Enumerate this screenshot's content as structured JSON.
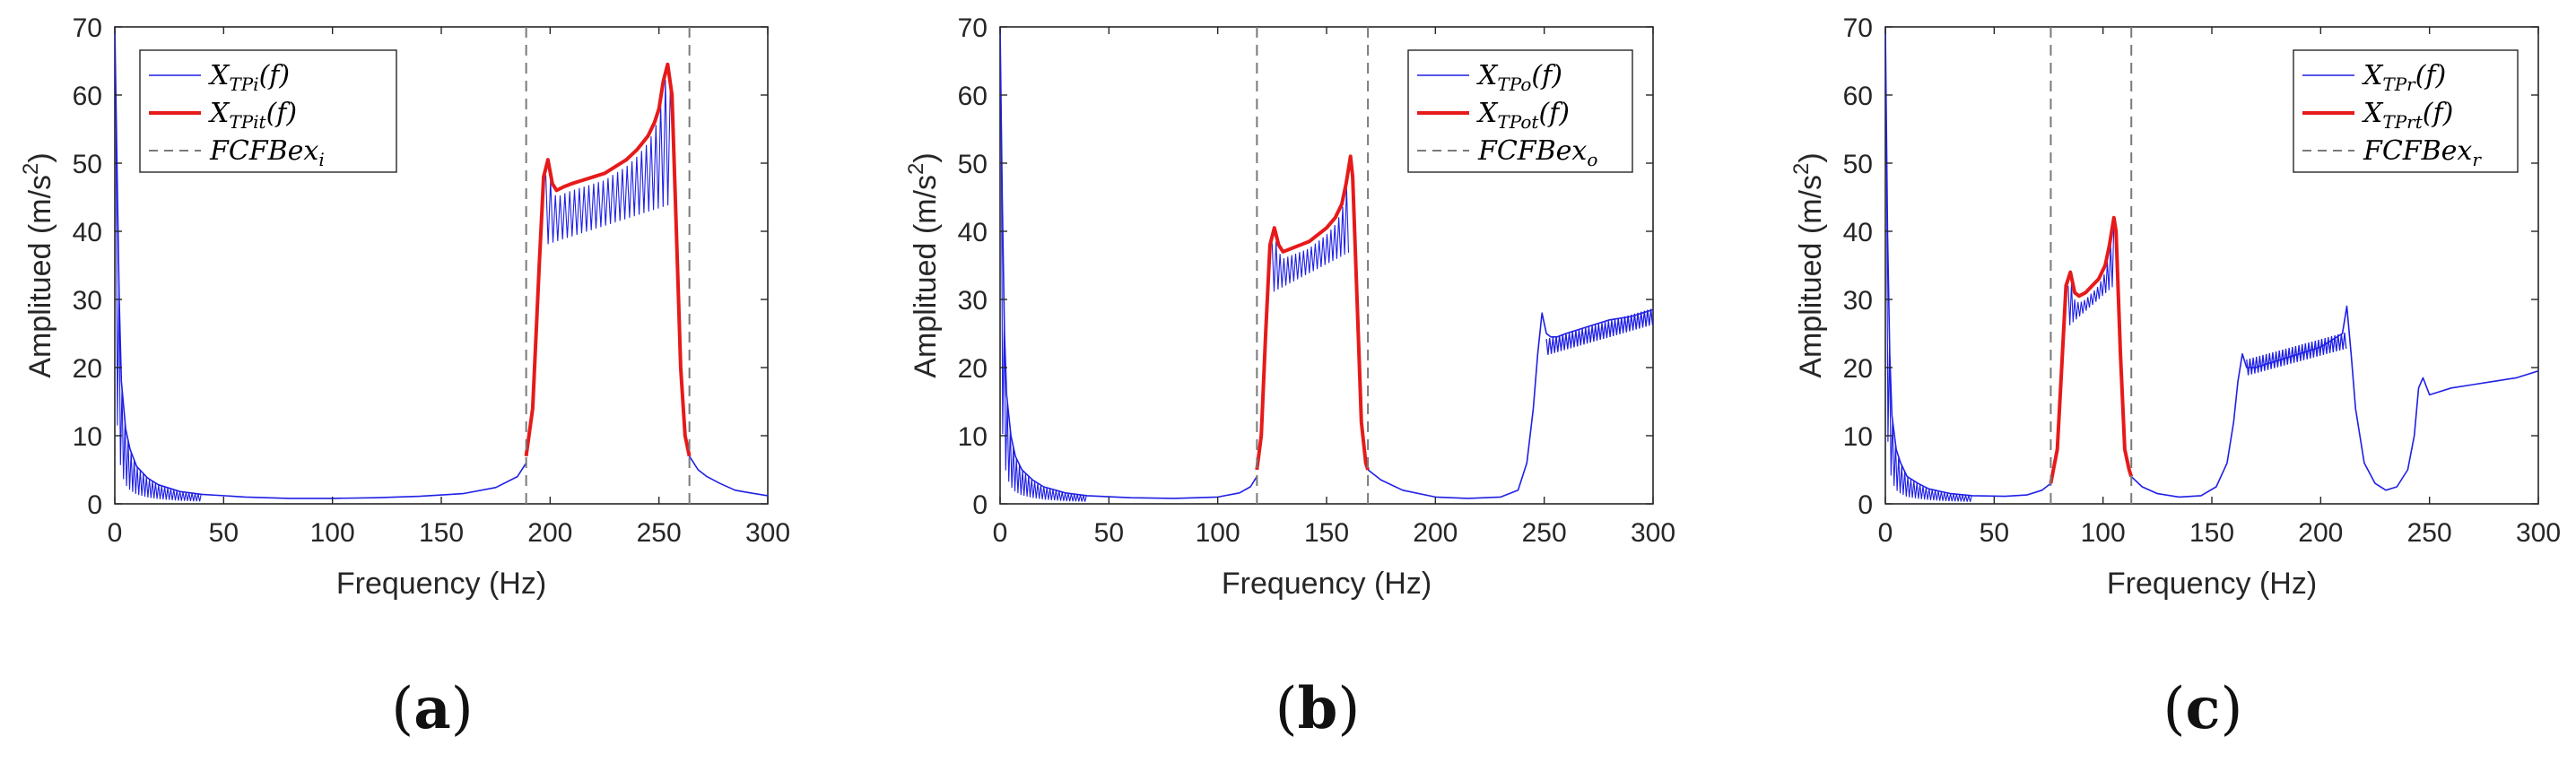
{
  "chart_data": [
    {
      "type": "line",
      "panel_label": "a",
      "xlabel": "Frequency (Hz)",
      "ylabel_prefix": "Amplitued (m/s",
      "ylabel_sup": "2",
      "ylabel_suffix": ")",
      "xlim": [
        0,
        300
      ],
      "ylim": [
        0,
        70
      ],
      "xticks": [
        0,
        50,
        100,
        150,
        200,
        250,
        300
      ],
      "yticks": [
        0,
        10,
        20,
        30,
        40,
        50,
        60,
        70
      ],
      "legend_position": "top-left",
      "legend": [
        {
          "main": "X",
          "sub": "TPi",
          "arg": "(f)",
          "style": "blue-thin"
        },
        {
          "main": "X",
          "sub": "TPit",
          "arg": "(f)",
          "style": "red-thick"
        },
        {
          "main": "FCFBex",
          "sub": "i",
          "arg": "",
          "style": "gray-dashed"
        }
      ],
      "dashed_lines_x": [
        189,
        264
      ],
      "band": [
        189,
        264
      ],
      "series": [
        {
          "name": "X_TPi(f)",
          "color": "#1f1fe6",
          "x": [
            0,
            1,
            2,
            3,
            5,
            7,
            10,
            15,
            20,
            30,
            40,
            60,
            80,
            100,
            120,
            140,
            160,
            175,
            185,
            189
          ],
          "y": [
            70,
            50,
            30,
            18,
            11,
            8,
            5.5,
            3.8,
            2.8,
            1.8,
            1.4,
            1.0,
            0.8,
            0.8,
            0.9,
            1.1,
            1.5,
            2.4,
            4,
            6
          ]
        },
        {
          "name": "X_TPit(f)",
          "color": "#e61a1a",
          "x": [
            189,
            192,
            195,
            197,
            199,
            201,
            203,
            206,
            210,
            215,
            220,
            225,
            230,
            235,
            240,
            245,
            248,
            250,
            252,
            254,
            256,
            258,
            260,
            262,
            264
          ],
          "y": [
            7,
            14,
            35,
            48,
            50.5,
            47,
            46,
            46.5,
            47,
            47.5,
            48,
            48.5,
            49.5,
            50.5,
            52,
            54,
            56,
            58,
            62,
            64.5,
            60,
            40,
            20,
            10,
            7
          ]
        },
        {
          "name": "tail",
          "color": "#1f1fe6",
          "x": [
            264,
            268,
            272,
            278,
            285,
            292,
            300
          ],
          "y": [
            7,
            5,
            4,
            3,
            2,
            1.6,
            1.2
          ]
        }
      ],
      "oscillation": {
        "x_start": 198,
        "x_end": 256,
        "base_start": 38,
        "base_end": 44,
        "step": 2.2
      }
    },
    {
      "type": "line",
      "panel_label": "b",
      "xlabel": "Frequency (Hz)",
      "ylabel_prefix": "Amplitued (m/s",
      "ylabel_sup": "2",
      "ylabel_suffix": ")",
      "xlim": [
        0,
        300
      ],
      "ylim": [
        0,
        70
      ],
      "xticks": [
        0,
        50,
        100,
        150,
        200,
        250,
        300
      ],
      "yticks": [
        0,
        10,
        20,
        30,
        40,
        50,
        60,
        70
      ],
      "legend_position": "top-right",
      "legend": [
        {
          "main": "X",
          "sub": "TPo",
          "arg": "(f)",
          "style": "blue-thin"
        },
        {
          "main": "X",
          "sub": "TPot",
          "arg": "(f)",
          "style": "red-thick"
        },
        {
          "main": "FCFBex",
          "sub": "o",
          "arg": "",
          "style": "gray-dashed"
        }
      ],
      "dashed_lines_x": [
        118,
        169
      ],
      "band": [
        118,
        169
      ],
      "series": [
        {
          "name": "X_TPo(f)",
          "color": "#1f1fe6",
          "x": [
            0,
            1,
            2,
            3,
            5,
            7,
            10,
            15,
            20,
            30,
            40,
            60,
            80,
            100,
            110,
            115,
            118
          ],
          "y": [
            70,
            45,
            25,
            16,
            10,
            7,
            5,
            3.5,
            2.5,
            1.6,
            1.2,
            0.9,
            0.8,
            1.0,
            1.6,
            2.5,
            4
          ]
        },
        {
          "name": "X_TPot(f)",
          "color": "#e61a1a",
          "x": [
            118,
            120,
            122,
            124,
            126,
            128,
            130,
            134,
            138,
            142,
            146,
            150,
            154,
            157,
            159,
            161,
            162,
            164,
            166,
            168,
            169
          ],
          "y": [
            5,
            10,
            25,
            38,
            40.5,
            38,
            37,
            37.5,
            38,
            38.5,
            39.5,
            40.5,
            42,
            44,
            47,
            51,
            48,
            30,
            12,
            6,
            5
          ]
        },
        {
          "name": "tail",
          "color": "#1f1fe6",
          "x": [
            169,
            175,
            185,
            200,
            215,
            230,
            238,
            242,
            245,
            247,
            249,
            251,
            253,
            256,
            260,
            270,
            280,
            290,
            300
          ],
          "y": [
            5,
            3.5,
            2,
            1,
            0.8,
            1.0,
            2,
            6,
            14,
            22,
            28,
            25,
            24.5,
            24.5,
            25,
            26,
            27,
            27.5,
            28.5
          ]
        }
      ],
      "oscillation": {
        "x_start": 125,
        "x_end": 161,
        "base_start": 31,
        "base_end": 37,
        "step": 1.8
      },
      "oscillation2": {
        "x_start": 251,
        "x_end": 300,
        "base_start": 23,
        "base_end": 27.5,
        "amp": 1.2,
        "step": 1.5
      }
    },
    {
      "type": "line",
      "panel_label": "c",
      "xlabel": "Frequency (Hz)",
      "ylabel_prefix": "Amplitued (m/s",
      "ylabel_sup": "2",
      "ylabel_suffix": ")",
      "xlim": [
        0,
        300
      ],
      "ylim": [
        0,
        70
      ],
      "xticks": [
        0,
        50,
        100,
        150,
        200,
        250,
        300
      ],
      "yticks": [
        0,
        10,
        20,
        30,
        40,
        50,
        60,
        70
      ],
      "legend_position": "top-right",
      "legend": [
        {
          "main": "X",
          "sub": "TPr",
          "arg": "(f)",
          "style": "blue-thin"
        },
        {
          "main": "X",
          "sub": "TPrt",
          "arg": "(f)",
          "style": "red-thick"
        },
        {
          "main": "FCFBex",
          "sub": "r",
          "arg": "",
          "style": "gray-dashed"
        }
      ],
      "dashed_lines_x": [
        76,
        113
      ],
      "band": [
        76,
        113
      ],
      "series": [
        {
          "name": "X_TPr(f)",
          "color": "#1f1fe6",
          "x": [
            0,
            1,
            2,
            3,
            5,
            7,
            10,
            15,
            20,
            30,
            40,
            55,
            65,
            72,
            76
          ],
          "y": [
            70,
            40,
            22,
            13,
            8,
            6,
            4,
            3,
            2.2,
            1.5,
            1.2,
            1.1,
            1.3,
            2,
            3
          ]
        },
        {
          "name": "X_TPrt(f)",
          "color": "#e61a1a",
          "x": [
            76,
            79,
            81,
            83,
            85,
            87,
            89,
            92,
            95,
            98,
            101,
            103,
            105,
            106,
            108,
            110,
            112,
            113
          ],
          "y": [
            3,
            8,
            20,
            32,
            34,
            31,
            30.5,
            31,
            32,
            33,
            35,
            38,
            42,
            40,
            22,
            8,
            5,
            4
          ]
        },
        {
          "name": "tail",
          "color": "#1f1fe6",
          "x": [
            113,
            118,
            125,
            135,
            145,
            152,
            157,
            160,
            162,
            164,
            166,
            170,
            180,
            190,
            200,
            205,
            210,
            212,
            214,
            216,
            220,
            225,
            230,
            235,
            240,
            243,
            245,
            247,
            250,
            255,
            260,
            270,
            280,
            290,
            300
          ],
          "y": [
            4,
            2.5,
            1.5,
            1.0,
            1.2,
            2.5,
            6,
            12,
            18,
            22,
            20,
            20,
            21,
            22,
            23,
            24,
            25,
            29,
            22,
            14,
            6,
            3,
            2,
            2.5,
            5,
            10,
            17,
            18.5,
            16,
            16.5,
            17,
            17.5,
            18,
            18.5,
            19.5
          ]
        }
      ],
      "oscillation": {
        "x_start": 84,
        "x_end": 105,
        "base_start": 26,
        "base_end": 32,
        "step": 1.5
      },
      "oscillation2": {
        "x_start": 166,
        "x_end": 212,
        "base_start": 20,
        "base_end": 24,
        "amp": 1.2,
        "step": 1.5
      }
    }
  ]
}
